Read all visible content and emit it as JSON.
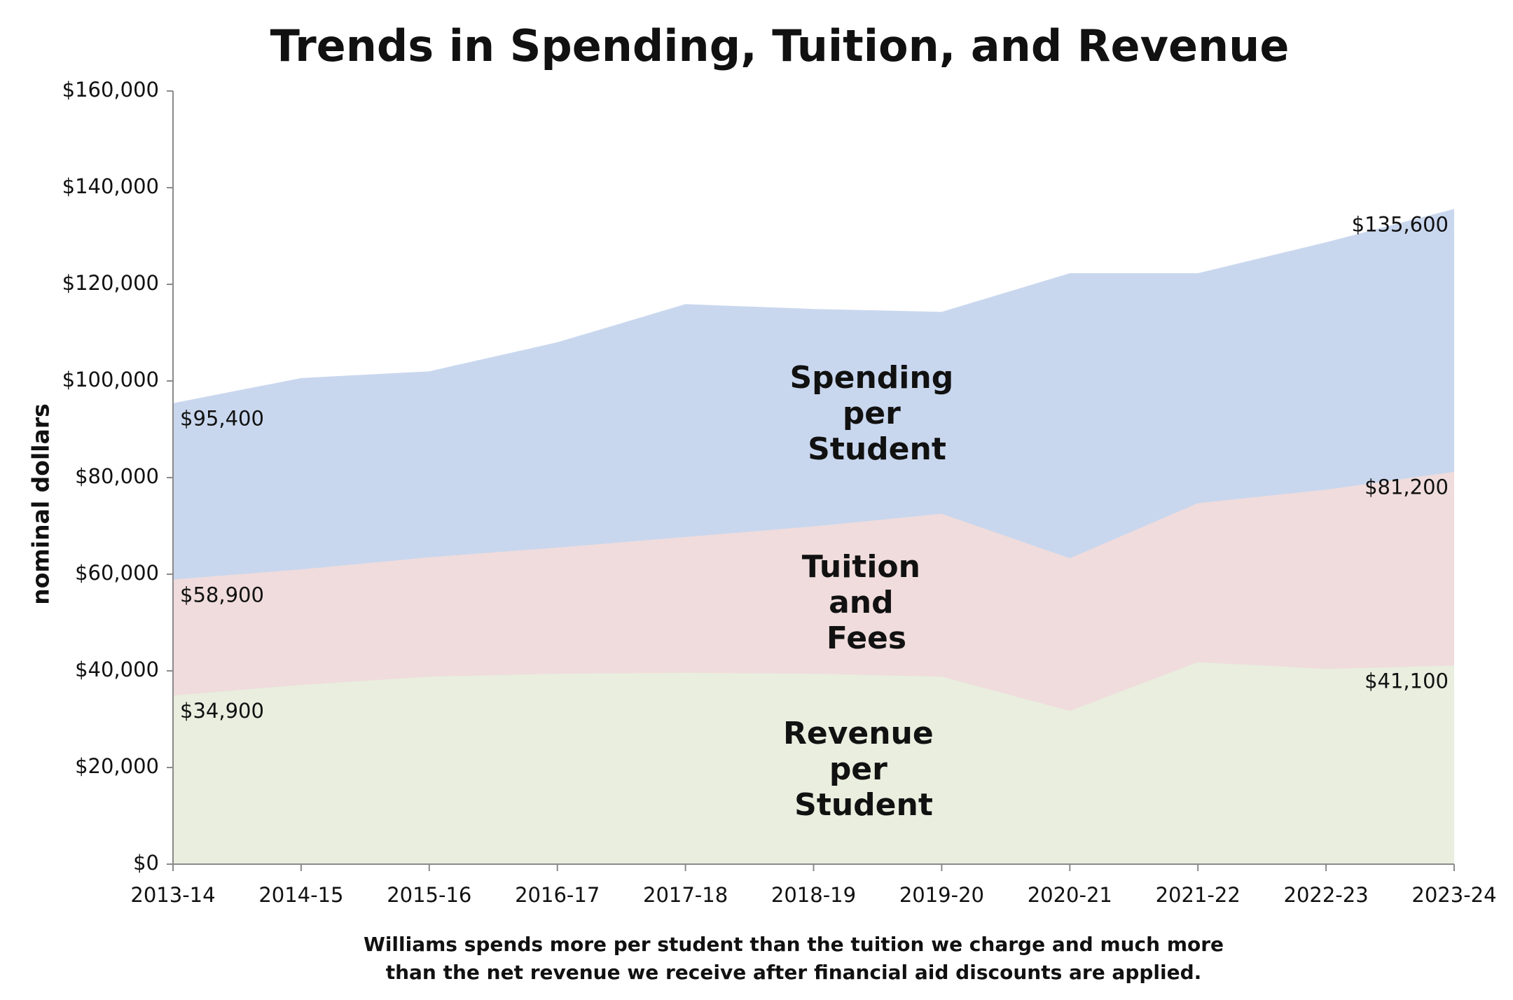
{
  "chart_data": {
    "type": "area",
    "title": "Trends in Spending, Tuition, and Revenue",
    "y_label": "nominal dollars",
    "caption": [
      "Williams spends more per student than the tuition we charge and much more",
      "than the net revenue we receive after financial aid discounts are applied."
    ],
    "categories": [
      "2013-14",
      "2014-15",
      "2015-16",
      "2016-17",
      "2017-18",
      "2018-19",
      "2019-20",
      "2020-21",
      "2021-22",
      "2022-23",
      "2023-24"
    ],
    "series": [
      {
        "name": "Spending per Student",
        "color": "#c9d7ee",
        "values": [
          95400,
          100600,
          102000,
          108000,
          115900,
          114900,
          114300,
          122300,
          122300,
          128700,
          135600
        ],
        "value_labels": [
          "$95,400",
          null,
          null,
          null,
          null,
          null,
          null,
          null,
          null,
          null,
          "$135,600"
        ]
      },
      {
        "name": "Tuition and Fees",
        "color": "#f0dcdc",
        "values": [
          58900,
          61000,
          63500,
          65500,
          67700,
          69900,
          72500,
          63300,
          74700,
          77500,
          81200
        ],
        "value_labels": [
          "$58,900",
          null,
          null,
          null,
          null,
          null,
          null,
          null,
          null,
          null,
          "$81,200"
        ]
      },
      {
        "name": "Revenue per Student",
        "color": "#e9eedf",
        "values": [
          34900,
          37100,
          38800,
          39400,
          39600,
          39400,
          38800,
          31700,
          41800,
          40400,
          41100
        ],
        "value_labels": [
          "$34,900",
          null,
          null,
          null,
          null,
          null,
          null,
          null,
          null,
          null,
          "$41,100"
        ]
      }
    ],
    "ylim": [
      0,
      160000
    ],
    "yticks": [
      {
        "value": 0,
        "label": "$0"
      },
      {
        "value": 20000,
        "label": "$20,000"
      },
      {
        "value": 40000,
        "label": "$40,000"
      },
      {
        "value": 60000,
        "label": "$60,000"
      },
      {
        "value": 80000,
        "label": "$80,000"
      },
      {
        "value": 100000,
        "label": "$100,000"
      },
      {
        "value": 120000,
        "label": "$120,000"
      },
      {
        "value": 140000,
        "label": "$140,000"
      },
      {
        "value": 160000,
        "label": "$160,000"
      }
    ],
    "grid": false
  }
}
